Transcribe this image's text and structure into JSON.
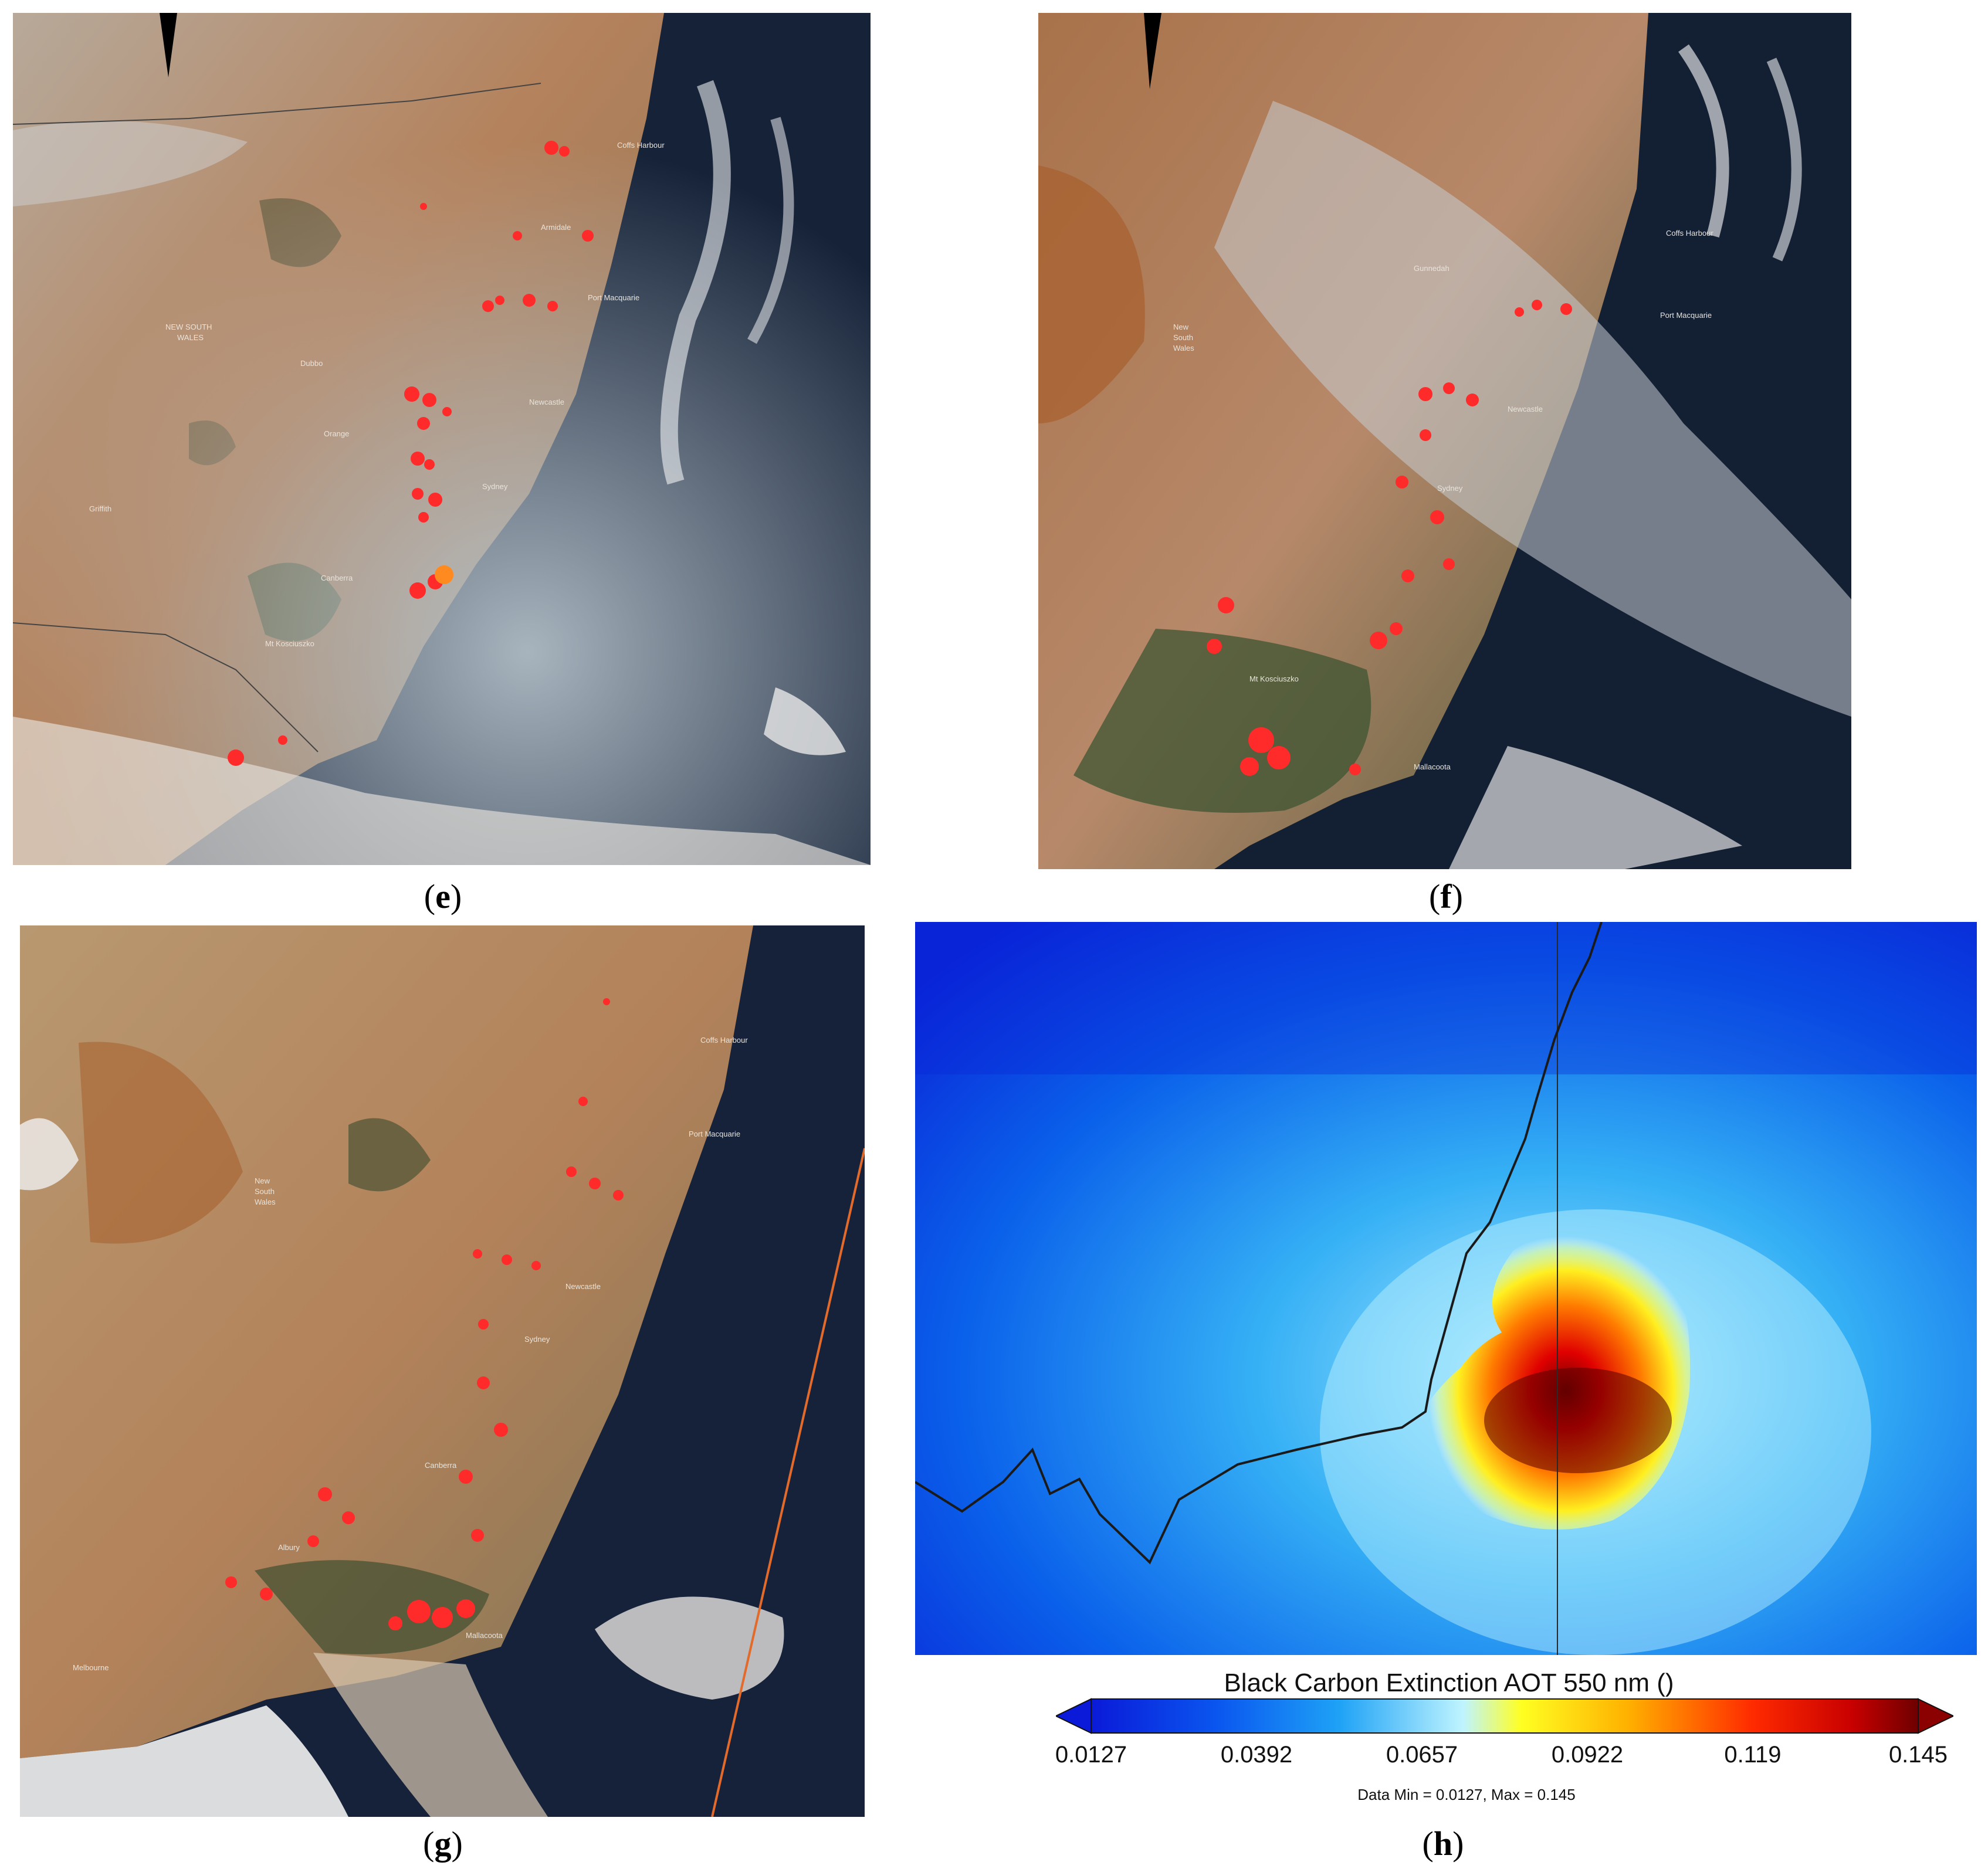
{
  "panels": {
    "e": {
      "caption": "e",
      "labels": [
        "NEW SOUTH WALES",
        "Sydney",
        "Newcastle",
        "Port Macquarie",
        "Canberra",
        "Coffs Harbour",
        "Armidale",
        "Dubbo",
        "Orange",
        "Griffith",
        "Mt Kosciuszko"
      ]
    },
    "f": {
      "caption": "f",
      "labels": [
        "New South Wales",
        "Sydney",
        "Newcastle",
        "Port Macquarie",
        "Coffs Harbour",
        "Gunnedah",
        "Mt Kosciuszko",
        "Mallacoota"
      ]
    },
    "g": {
      "caption": "g",
      "labels": [
        "New South Wales",
        "Sydney",
        "Newcastle",
        "Port Macquarie",
        "Coffs Harbour",
        "Canberra",
        "Albury",
        "Melbourne",
        "Mallacoota"
      ]
    },
    "h": {
      "caption": "h"
    }
  },
  "colorbar": {
    "title": "Black Carbon Extinction AOT 550 nm ()",
    "ticks": [
      "0.0127",
      "0.0392",
      "0.0657",
      "0.0922",
      "0.119",
      "0.145"
    ],
    "data_info": "Data Min = 0.0127, Max = 0.145",
    "min": 0.0127,
    "max": 0.145,
    "colors": [
      "#0a1ad8",
      "#0a55ef",
      "#1ea2f6",
      "#bff4ff",
      "#ffff22",
      "#ffb000",
      "#ff2a00",
      "#c80000",
      "#6e0000"
    ],
    "left_arrow_color": "#0a1ad8",
    "right_arrow_color": "#8b0000"
  },
  "colors": {
    "fire": "#ff2a2a",
    "ocean": "#15233a",
    "land": "#b9835a",
    "smoke": "#c9ced4"
  }
}
